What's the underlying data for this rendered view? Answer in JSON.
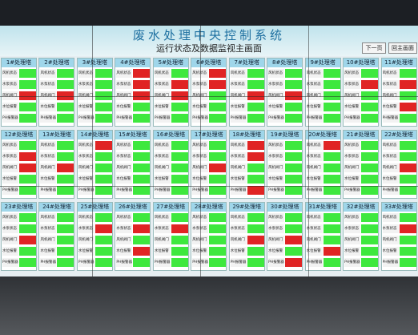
{
  "header": {
    "title": "废水处理中央控制系统",
    "subtitle": "运行状态及数据监视主画面",
    "buttons": [
      "下一页",
      "回主画面"
    ]
  },
  "row_labels": [
    "风机状态",
    "水泵状态",
    "风机阀门",
    "水位报警",
    "PH报警器"
  ],
  "status_colors": {
    "g": "#3ee83e",
    "r": "#e02424"
  },
  "panels": [
    {
      "name": "1#处理塔",
      "status": [
        "g",
        "g",
        "r",
        "g",
        "g"
      ]
    },
    {
      "name": "2#处理塔",
      "status": [
        "g",
        "g",
        "r",
        "g",
        "g"
      ]
    },
    {
      "name": "3#处理塔",
      "status": [
        "g",
        "g",
        "g",
        "g",
        "g"
      ]
    },
    {
      "name": "4#处理塔",
      "status": [
        "r",
        "r",
        "r",
        "g",
        "g"
      ]
    },
    {
      "name": "5#处理塔",
      "status": [
        "g",
        "r",
        "r",
        "g",
        "g"
      ]
    },
    {
      "name": "6#处理塔",
      "status": [
        "r",
        "r",
        "g",
        "g",
        "g"
      ]
    },
    {
      "name": "7#处理塔",
      "status": [
        "g",
        "g",
        "r",
        "g",
        "g"
      ]
    },
    {
      "name": "8#处理塔",
      "status": [
        "g",
        "g",
        "r",
        "g",
        "g"
      ]
    },
    {
      "name": "9#处理塔",
      "status": [
        "g",
        "g",
        "g",
        "g",
        "g"
      ]
    },
    {
      "name": "10#处理塔",
      "status": [
        "g",
        "r",
        "g",
        "g",
        "g"
      ]
    },
    {
      "name": "11#处理塔",
      "status": [
        "g",
        "r",
        "g",
        "r",
        "g"
      ]
    },
    {
      "name": "12#处理塔",
      "status": [
        "g",
        "r",
        "r",
        "g",
        "g"
      ]
    },
    {
      "name": "13#处理塔",
      "status": [
        "g",
        "g",
        "r",
        "g",
        "g"
      ]
    },
    {
      "name": "14#处理塔",
      "status": [
        "r",
        "g",
        "g",
        "g",
        "g"
      ]
    },
    {
      "name": "15#处理塔",
      "status": [
        "g",
        "g",
        "g",
        "g",
        "g"
      ]
    },
    {
      "name": "16#处理塔",
      "status": [
        "g",
        "g",
        "g",
        "g",
        "g"
      ]
    },
    {
      "name": "17#处理塔",
      "status": [
        "g",
        "g",
        "r",
        "g",
        "g"
      ]
    },
    {
      "name": "18#处理塔",
      "status": [
        "r",
        "r",
        "g",
        "g",
        "r"
      ]
    },
    {
      "name": "19#处理塔",
      "status": [
        "g",
        "g",
        "g",
        "g",
        "g"
      ]
    },
    {
      "name": "20#处理塔",
      "status": [
        "r",
        "g",
        "g",
        "g",
        "g"
      ]
    },
    {
      "name": "21#处理塔",
      "status": [
        "g",
        "g",
        "g",
        "g",
        "g"
      ]
    },
    {
      "name": "22#处理塔",
      "status": [
        "g",
        "g",
        "r",
        "g",
        "g"
      ]
    },
    {
      "name": "23#处理塔",
      "status": [
        "g",
        "g",
        "r",
        "g",
        "g"
      ]
    },
    {
      "name": "24#处理塔",
      "status": [
        "g",
        "g",
        "g",
        "g",
        "g"
      ]
    },
    {
      "name": "25#处理塔",
      "status": [
        "g",
        "r",
        "g",
        "g",
        "g"
      ]
    },
    {
      "name": "26#处理塔",
      "status": [
        "g",
        "r",
        "g",
        "r",
        "g"
      ]
    },
    {
      "name": "27#处理塔",
      "status": [
        "g",
        "r",
        "g",
        "g",
        "g"
      ]
    },
    {
      "name": "28#处理塔",
      "status": [
        "g",
        "g",
        "g",
        "g",
        "g"
      ]
    },
    {
      "name": "29#处理塔",
      "status": [
        "g",
        "g",
        "r",
        "g",
        "g"
      ]
    },
    {
      "name": "30#处理塔",
      "status": [
        "g",
        "g",
        "r",
        "g",
        "r"
      ]
    },
    {
      "name": "31#处理塔",
      "status": [
        "g",
        "g",
        "g",
        "r",
        "g"
      ]
    },
    {
      "name": "32#处理塔",
      "status": [
        "g",
        "g",
        "g",
        "g",
        "g"
      ]
    },
    {
      "name": "33#处理塔",
      "status": [
        "g",
        "r",
        "g",
        "g",
        "g"
      ]
    }
  ]
}
